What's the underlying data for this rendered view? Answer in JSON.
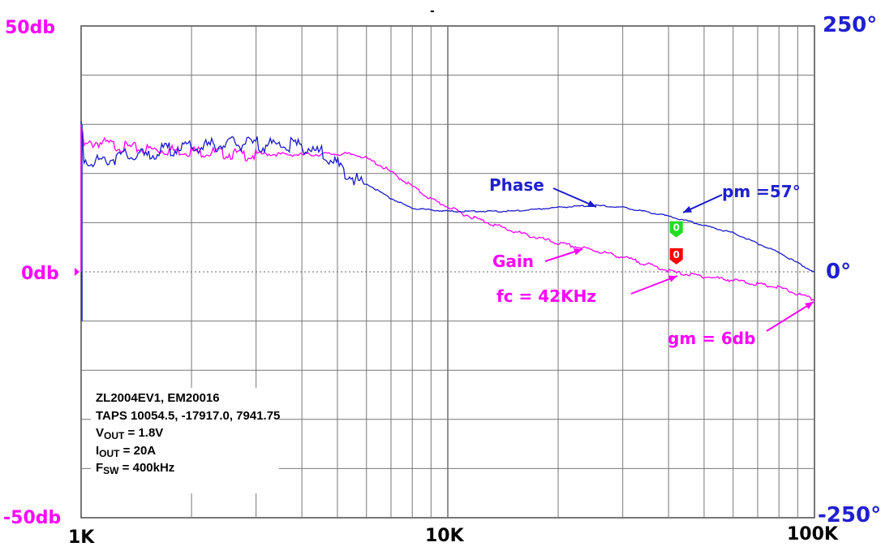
{
  "chart_data": {
    "type": "line",
    "title": "",
    "xscale": "log",
    "xlim": [
      1000,
      100000
    ],
    "x_ticks": [
      "1K",
      "10K",
      "100K"
    ],
    "left_axis": {
      "ylim": [
        -50,
        50
      ],
      "ticks": [
        "50db",
        "0db",
        "-50db"
      ]
    },
    "right_axis": {
      "ylim": [
        -250,
        250
      ],
      "ticks": [
        "250°",
        "0°",
        "-250°"
      ]
    },
    "grid": true,
    "series": [
      {
        "name": "Gain",
        "axis": "left",
        "color": "#ff00ff",
        "points": [
          [
            1000,
            30
          ],
          [
            1020,
            26
          ],
          [
            1100,
            27
          ],
          [
            1300,
            26
          ],
          [
            1500,
            25.5
          ],
          [
            2000,
            25.2
          ],
          [
            3000,
            24.2
          ],
          [
            4000,
            24
          ],
          [
            5000,
            24.2
          ],
          [
            5700,
            24
          ],
          [
            6500,
            22
          ],
          [
            7500,
            19
          ],
          [
            9000,
            15
          ],
          [
            11000,
            12
          ],
          [
            15000,
            8.5
          ],
          [
            20000,
            6
          ],
          [
            25000,
            4.6
          ],
          [
            30000,
            3.2
          ],
          [
            42000,
            0
          ],
          [
            60000,
            -1.5
          ],
          [
            80000,
            -3
          ],
          [
            100000,
            -5.5
          ]
        ]
      },
      {
        "name": "Phase",
        "axis": "right",
        "color": "#1a1acc",
        "points": [
          [
            1000,
            150
          ],
          [
            1020,
            120
          ],
          [
            1100,
            116
          ],
          [
            1300,
            122
          ],
          [
            1500,
            122
          ],
          [
            1800,
            130
          ],
          [
            2000,
            130
          ],
          [
            2500,
            134
          ],
          [
            3000,
            134
          ],
          [
            4000,
            132
          ],
          [
            4500,
            125
          ],
          [
            5000,
            112
          ],
          [
            6000,
            90
          ],
          [
            7000,
            75
          ],
          [
            8000,
            65
          ],
          [
            10000,
            62
          ],
          [
            15000,
            62
          ],
          [
            20000,
            66
          ],
          [
            25000,
            68
          ],
          [
            30000,
            66
          ],
          [
            40000,
            57
          ],
          [
            60000,
            40
          ],
          [
            80000,
            20
          ],
          [
            100000,
            0
          ]
        ]
      }
    ],
    "markers": [
      {
        "label": "0",
        "x": 42000,
        "y_db": 7,
        "color": "#22dd22"
      },
      {
        "label": "0",
        "x": 42000,
        "y_db": 1.5,
        "color": "#ff0000"
      }
    ],
    "annotations": {
      "phase": "Phase",
      "gain": "Gain",
      "fc": "fc = 42KHz",
      "pm": "pm =57°",
      "gm": "gm = 6db"
    },
    "info_box": {
      "line1": "ZL2004EV1, EM20016",
      "line2": "TAPS 10054.5, -17917.0, 7941.75",
      "vout_label": "V",
      "vout_sub": "OUT",
      "vout_value": " = 1.8V",
      "iout_label": "I",
      "iout_sub": "OUT",
      "iout_value": " = 20A",
      "fsw_label": "F",
      "fsw_sub": "SW",
      "fsw_value": " = 400kHz"
    },
    "top_mark": "-"
  }
}
